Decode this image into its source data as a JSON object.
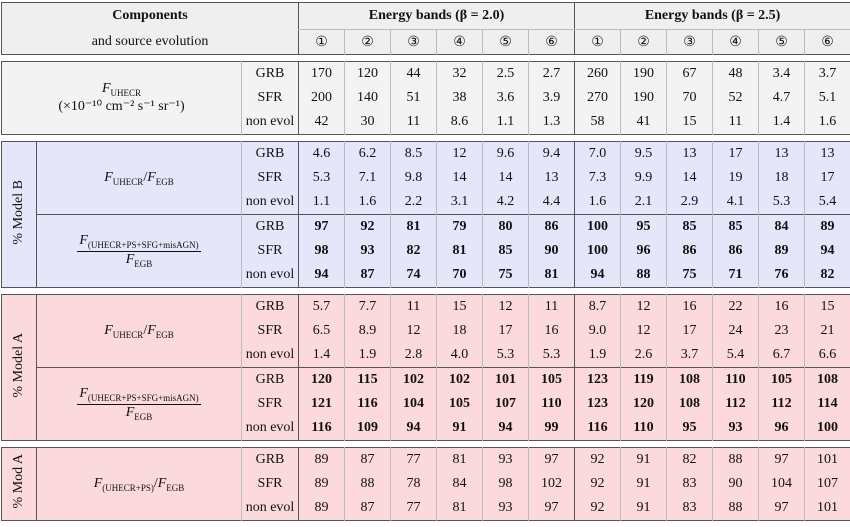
{
  "header": {
    "components": [
      "Components",
      "and source evolution"
    ],
    "bands": [
      {
        "title": "Energy bands (β = 2.0)",
        "labels": [
          "①",
          "②",
          "③",
          "④",
          "⑤",
          "⑥"
        ]
      },
      {
        "title": "Energy bands (β = 2.5)",
        "labels": [
          "①",
          "②",
          "③",
          "④",
          "⑤",
          "⑥"
        ]
      }
    ]
  },
  "sections": [
    {
      "color": "#f3f3f3",
      "groups": [
        {
          "label": {
            "symbol": "F",
            "sub": "UHECR",
            "unit": "(×10⁻¹⁰ cm⁻² s⁻¹ sr⁻¹)"
          },
          "bold": false,
          "rows": [
            {
              "source": "GRB",
              "values": [
                "170",
                "120",
                "44",
                "32",
                "2.5",
                "2.7",
                "260",
                "190",
                "67",
                "48",
                "3.4",
                "3.7"
              ]
            },
            {
              "source": "SFR",
              "values": [
                "200",
                "140",
                "51",
                "38",
                "3.6",
                "3.9",
                "270",
                "190",
                "70",
                "52",
                "4.7",
                "5.1"
              ]
            },
            {
              "source": "non evol",
              "values": [
                "42",
                "30",
                "11",
                "8.6",
                "1.1",
                "1.3",
                "58",
                "41",
                "15",
                "11",
                "1.4",
                "1.6"
              ]
            }
          ]
        }
      ]
    },
    {
      "side": "% Model B",
      "color": "#e6e6fa",
      "groups": [
        {
          "label": {
            "num": {
              "symbol": "F",
              "sub": "UHECR"
            },
            "slash": "/",
            "den": {
              "symbol": "F",
              "sub": "EGB"
            }
          },
          "bold": false,
          "rows": [
            {
              "source": "GRB",
              "values": [
                "4.6",
                "6.2",
                "8.5",
                "12",
                "9.6",
                "9.4",
                "7.0",
                "9.5",
                "13",
                "17",
                "13",
                "13"
              ]
            },
            {
              "source": "SFR",
              "values": [
                "5.3",
                "7.1",
                "9.8",
                "14",
                "14",
                "13",
                "7.3",
                "9.9",
                "14",
                "19",
                "18",
                "17"
              ]
            },
            {
              "source": "non evol",
              "values": [
                "1.1",
                "1.6",
                "2.2",
                "3.1",
                "4.2",
                "4.4",
                "1.6",
                "2.1",
                "2.9",
                "4.1",
                "5.3",
                "5.4"
              ]
            }
          ]
        },
        {
          "label": {
            "num": {
              "symbol": "F",
              "sub": "(UHECR+PS+SFG+misAGN)"
            },
            "den": {
              "symbol": "F",
              "sub": "EGB"
            }
          },
          "bold": true,
          "rows": [
            {
              "source": "GRB",
              "values": [
                "97",
                "92",
                "81",
                "79",
                "80",
                "86",
                "100",
                "95",
                "85",
                "85",
                "84",
                "89"
              ]
            },
            {
              "source": "SFR",
              "values": [
                "98",
                "93",
                "82",
                "81",
                "85",
                "90",
                "100",
                "96",
                "86",
                "86",
                "89",
                "94"
              ]
            },
            {
              "source": "non evol",
              "values": [
                "94",
                "87",
                "74",
                "70",
                "75",
                "81",
                "94",
                "88",
                "75",
                "71",
                "76",
                "82"
              ]
            }
          ]
        }
      ]
    },
    {
      "side": "% Model A",
      "color": "#fbd9dc",
      "groups": [
        {
          "label": {
            "num": {
              "symbol": "F",
              "sub": "UHECR"
            },
            "slash": "/",
            "den": {
              "symbol": "F",
              "sub": "EGB"
            }
          },
          "bold": false,
          "rows": [
            {
              "source": "GRB",
              "values": [
                "5.7",
                "7.7",
                "11",
                "15",
                "12",
                "11",
                "8.7",
                "12",
                "16",
                "22",
                "16",
                "15"
              ]
            },
            {
              "source": "SFR",
              "values": [
                "6.5",
                "8.9",
                "12",
                "18",
                "17",
                "16",
                "9.0",
                "12",
                "17",
                "24",
                "23",
                "21"
              ]
            },
            {
              "source": "non evol",
              "values": [
                "1.4",
                "1.9",
                "2.8",
                "4.0",
                "5.3",
                "5.3",
                "1.9",
                "2.6",
                "3.7",
                "5.4",
                "6.7",
                "6.6"
              ]
            }
          ]
        },
        {
          "label": {
            "num": {
              "symbol": "F",
              "sub": "(UHECR+PS+SFG+misAGN)"
            },
            "den": {
              "symbol": "F",
              "sub": "EGB"
            }
          },
          "bold": true,
          "rows": [
            {
              "source": "GRB",
              "values": [
                "120",
                "115",
                "102",
                "102",
                "101",
                "105",
                "123",
                "119",
                "108",
                "110",
                "105",
                "108"
              ]
            },
            {
              "source": "SFR",
              "values": [
                "121",
                "116",
                "104",
                "105",
                "107",
                "110",
                "123",
                "120",
                "108",
                "112",
                "112",
                "114"
              ]
            },
            {
              "source": "non evol",
              "values": [
                "116",
                "109",
                "94",
                "91",
                "94",
                "99",
                "116",
                "110",
                "95",
                "93",
                "96",
                "100"
              ]
            }
          ]
        }
      ]
    },
    {
      "side": "% Mod A",
      "color": "#fbd9dc",
      "groups": [
        {
          "label": {
            "num": {
              "symbol": "F",
              "sub": "(UHECR+PS)"
            },
            "slash": "/",
            "den": {
              "symbol": "F",
              "sub": "EGB"
            }
          },
          "bold": false,
          "rows": [
            {
              "source": "GRB",
              "values": [
                "89",
                "87",
                "77",
                "81",
                "93",
                "97",
                "92",
                "91",
                "82",
                "88",
                "97",
                "101"
              ]
            },
            {
              "source": "SFR",
              "values": [
                "89",
                "88",
                "78",
                "84",
                "98",
                "102",
                "92",
                "91",
                "83",
                "90",
                "104",
                "107"
              ]
            },
            {
              "source": "non evol",
              "values": [
                "89",
                "87",
                "77",
                "81",
                "93",
                "97",
                "92",
                "91",
                "83",
                "88",
                "97",
                "101"
              ]
            }
          ]
        }
      ]
    }
  ]
}
